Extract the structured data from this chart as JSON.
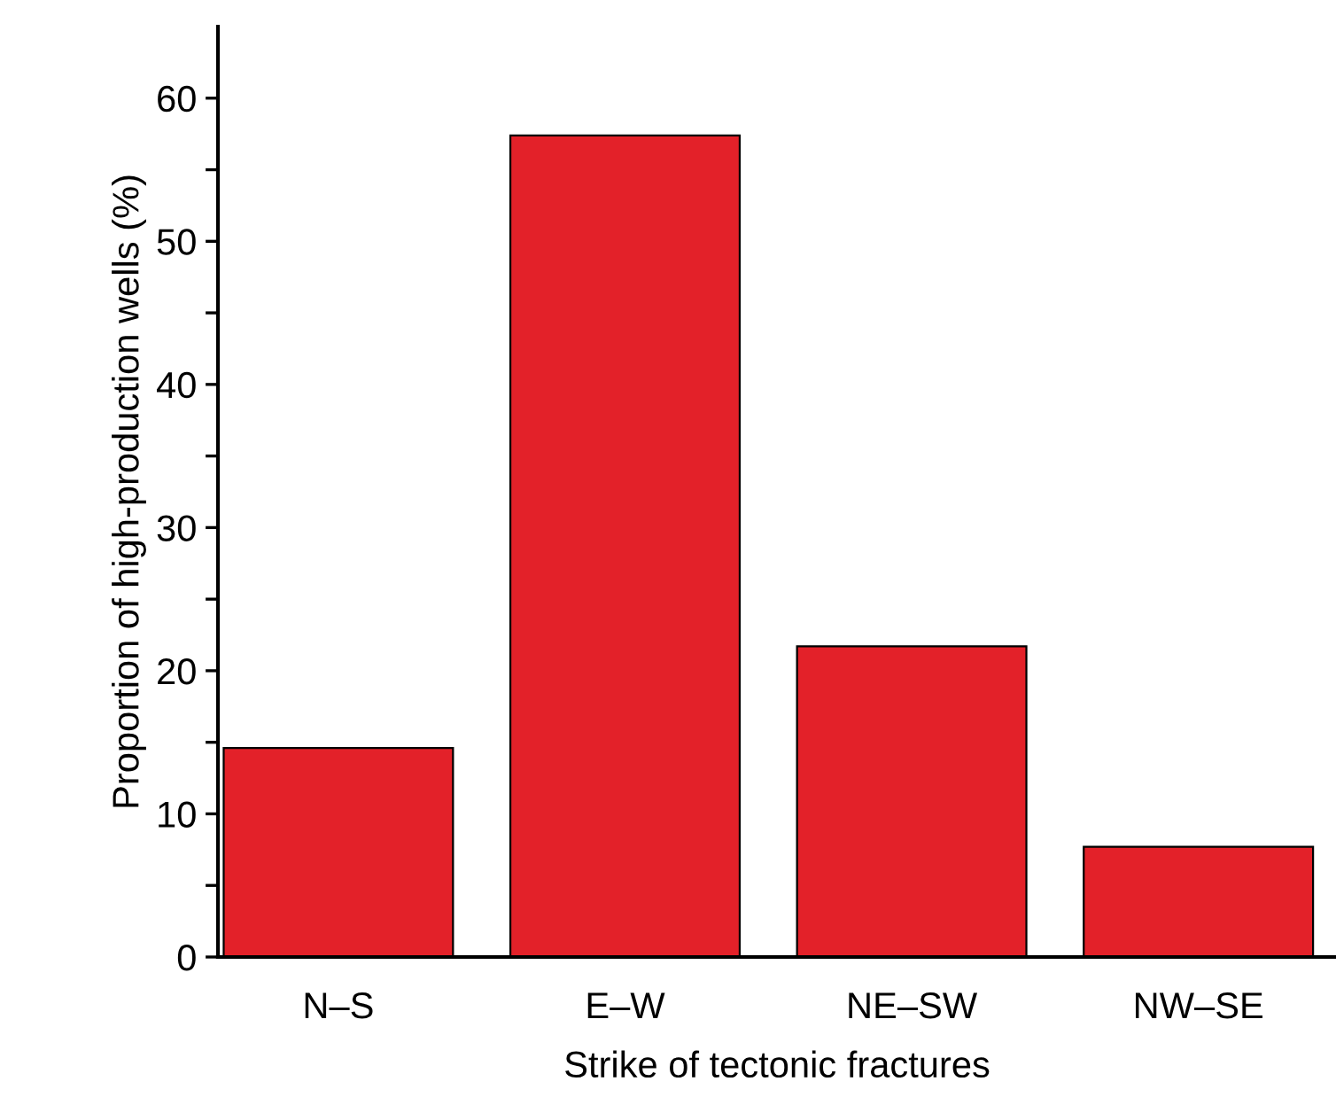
{
  "chart_data": {
    "type": "bar",
    "xlabel": "Strike of tectonic fractures",
    "ylabel": "Proportion of high-production wells (%)",
    "categories": [
      "N–S",
      "E–W",
      "NE–SW",
      "NW–SE"
    ],
    "values": [
      14.6,
      57.4,
      21.7,
      7.7
    ],
    "color": "#e32129",
    "ylim": [
      0,
      65
    ],
    "yticks": [
      0,
      {
        "value": 5,
        "label": null
      },
      10,
      {
        "value": 15,
        "label": null
      },
      20,
      {
        "value": 25,
        "label": null
      },
      30,
      {
        "value": 35,
        "label": null
      },
      40,
      {
        "value": 45,
        "label": null
      },
      50,
      {
        "value": 55,
        "label": null
      },
      60
    ],
    "grid": false,
    "legend": false
  }
}
